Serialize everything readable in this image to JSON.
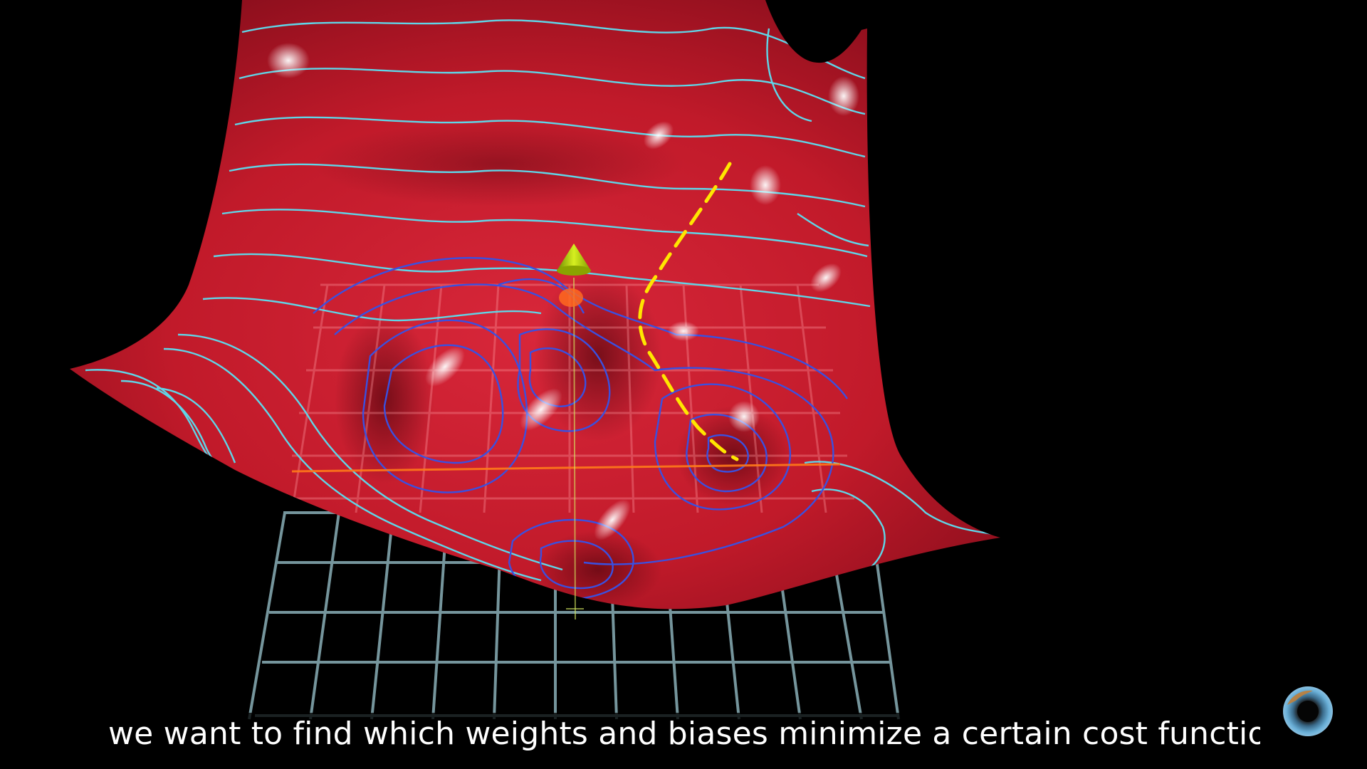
{
  "video": {
    "subtitle": "we want to find which weights and biases minimize a certain cost function."
  },
  "colors": {
    "background": "#000000",
    "surface": "#c41a2a",
    "surface_dark": "#6a0a14",
    "contour_light": "#5fd6e8",
    "contour_dark": "#3a50e0",
    "floor_grid": "#8ab0b8",
    "path": "#ffe600",
    "marker": "#b8d400",
    "axis": "#ff7a1a"
  },
  "icons": {
    "channel_logo": "pi-creature-eye-icon",
    "marker": "cone-marker-icon"
  }
}
